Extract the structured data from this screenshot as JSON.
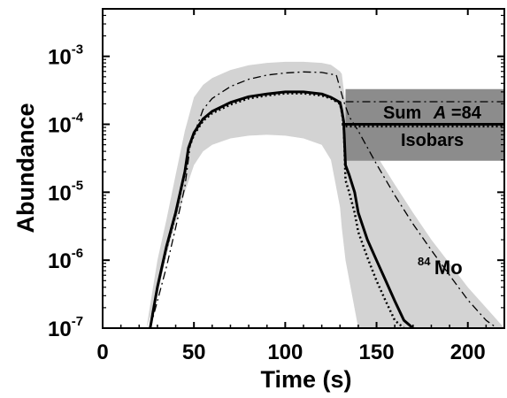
{
  "chart_data": {
    "type": "line",
    "xlabel": "Time (s)",
    "ylabel": "Abundance",
    "xlim": [
      0,
      220
    ],
    "ylim": [
      1e-07,
      0.005
    ],
    "yscale": "log",
    "grid": false,
    "x_ticks": [
      {
        "value": 0,
        "label": "0"
      },
      {
        "value": 50,
        "label": "50"
      },
      {
        "value": 100,
        "label": "100"
      },
      {
        "value": 150,
        "label": "150"
      },
      {
        "value": 200,
        "label": "200"
      }
    ],
    "y_ticks": [
      {
        "value": 0.001,
        "mantissa": "10",
        "exponent": "-3"
      },
      {
        "value": 0.0001,
        "mantissa": "10",
        "exponent": "-4"
      },
      {
        "value": 1e-05,
        "mantissa": "10",
        "exponent": "-5"
      },
      {
        "value": 1e-06,
        "mantissa": "10",
        "exponent": "-6"
      },
      {
        "value": 1e-07,
        "mantissa": "10",
        "exponent": "-7"
      }
    ],
    "series": [
      {
        "id": "mo84-band",
        "kind": "band",
        "color": "#d3d3d3",
        "x": [
          24,
          30,
          35,
          40,
          45,
          50,
          55,
          60,
          70,
          80,
          90,
          100,
          110,
          120,
          125,
          130,
          131,
          133,
          140,
          150,
          160,
          170,
          180,
          190,
          200,
          210,
          220
        ],
        "upper": [
          1e-07,
          1e-06,
          4e-06,
          1.8e-05,
          8e-05,
          0.00025,
          0.00038,
          0.00048,
          0.00063,
          0.00074,
          0.0008,
          0.00083,
          0.00083,
          0.0008,
          0.00075,
          0.0006,
          0.00055,
          0.0002,
          9e-05,
          3.5e-05,
          1.3e-05,
          5e-06,
          2e-06,
          9e-07,
          4e-07,
          2e-07,
          1e-07
        ],
        "lower": [
          1e-07,
          3e-07,
          1.2e-06,
          3.5e-06,
          1e-05,
          2.5e-05,
          4e-05,
          5e-05,
          6.2e-05,
          6.8e-05,
          7e-05,
          6.8e-05,
          6.2e-05,
          5e-05,
          3e-05,
          6e-06,
          3e-06,
          1e-06,
          1e-07,
          1e-07,
          1e-07,
          1e-07,
          1e-07,
          1e-07,
          1e-07,
          1e-07,
          1e-07
        ]
      },
      {
        "id": "sum-band",
        "kind": "band",
        "color": "#8c8c8c",
        "x": [
          133,
          220
        ],
        "upper": [
          0.00033,
          0.00033
        ],
        "lower": [
          2.9e-05,
          2.9e-05
        ]
      },
      {
        "id": "mo84-dashdot",
        "kind": "line",
        "style": "dashdot",
        "color": "#000000",
        "x": [
          26,
          35,
          40,
          45,
          48,
          55,
          60,
          70,
          80,
          90,
          100,
          110,
          120,
          128,
          132,
          135,
          140,
          150,
          160,
          170,
          180,
          190,
          200,
          210,
          216
        ],
        "y": [
          1e-07,
          8e-07,
          3e-06,
          1.2e-05,
          5e-05,
          0.000165,
          0.00024,
          0.00036,
          0.00046,
          0.00053,
          0.00057,
          0.00059,
          0.00058,
          0.00053,
          0.00022,
          0.00013,
          8e-05,
          2.6e-05,
          9e-06,
          3.4e-06,
          1.4e-06,
          6e-07,
          2.6e-07,
          1.3e-07,
          1e-07
        ]
      },
      {
        "id": "mo84-solid",
        "kind": "line",
        "style": "solid",
        "color": "#000000",
        "x": [
          26,
          30,
          35,
          40,
          45,
          47,
          50,
          55,
          60,
          70,
          80,
          90,
          100,
          110,
          120,
          125,
          130,
          131,
          132,
          133,
          135,
          138,
          140,
          145,
          150,
          155,
          160,
          165,
          170
        ],
        "y": [
          1e-07,
          4e-07,
          1.6e-06,
          5e-06,
          2e-05,
          4.5e-05,
          7.5e-05,
          0.00012,
          0.000155,
          0.00021,
          0.000255,
          0.00028,
          0.0003,
          0.0003,
          0.00028,
          0.00025,
          0.00021,
          0.00016,
          0.00011,
          2.5e-05,
          1.8e-05,
          1e-05,
          5e-06,
          2e-06,
          1e-06,
          5e-07,
          2.5e-07,
          1.3e-07,
          1e-07
        ]
      },
      {
        "id": "mo84-dotted",
        "kind": "line",
        "style": "dotted",
        "color": "#000000",
        "x": [
          26,
          30,
          35,
          40,
          45,
          47,
          50,
          55,
          60,
          70,
          80,
          90,
          100,
          110,
          120,
          125,
          130,
          131,
          132,
          133,
          135,
          138,
          140,
          145,
          150,
          155,
          160,
          165
        ],
        "y": [
          1e-07,
          4e-07,
          1.5e-06,
          4.7e-06,
          1.9e-05,
          4.3e-05,
          7e-05,
          0.000112,
          0.000145,
          0.000195,
          0.00024,
          0.000265,
          0.000285,
          0.000285,
          0.000265,
          0.00024,
          0.0002,
          0.00015,
          0.0001,
          1.5e-05,
          1e-05,
          5e-06,
          2.6e-06,
          1.1e-06,
          5e-07,
          2.5e-07,
          1.3e-07,
          1e-07
        ]
      },
      {
        "id": "sum-dashdot",
        "kind": "line",
        "style": "dashdot",
        "color": "#000000",
        "x": [
          133,
          220
        ],
        "y": [
          0.000215,
          0.000215
        ]
      },
      {
        "id": "sum-solid",
        "kind": "line",
        "style": "solid",
        "color": "#000000",
        "x": [
          131,
          220
        ],
        "y": [
          0.0001,
          0.0001
        ]
      },
      {
        "id": "sum-dotted",
        "kind": "line",
        "style": "dotted",
        "color": "#000000",
        "x": [
          133,
          220
        ],
        "y": [
          9.3e-05,
          9.3e-05
        ]
      }
    ],
    "annotations": {
      "sum_word": "Sum",
      "sum_a": "A",
      "sum_eq": "=84",
      "isobars": "Isobars",
      "mo_mass": "84",
      "mo_symbol": "Mo"
    }
  }
}
